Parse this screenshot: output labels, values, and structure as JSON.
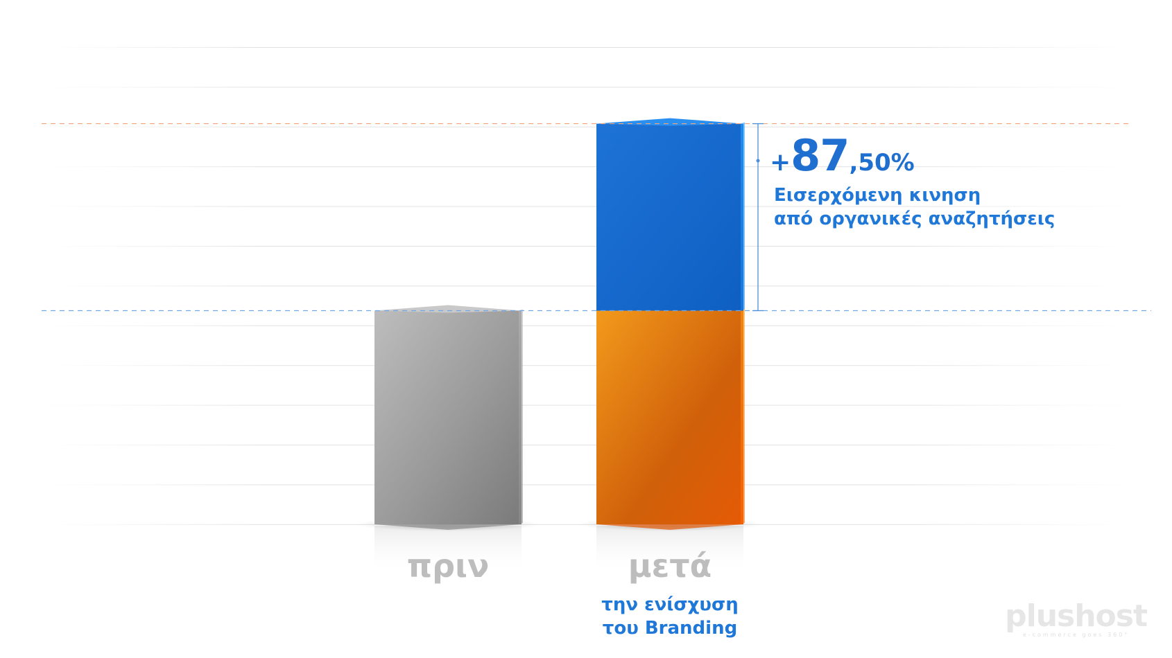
{
  "chart_data": {
    "type": "bar",
    "categories": [
      "πριν",
      "μετά"
    ],
    "series": [
      {
        "values": [
          100,
          100
        ]
      },
      {
        "values": [
          0,
          87.5
        ]
      }
    ],
    "colors": {
      "before": "#a8a8a8",
      "base": "#ff8a00",
      "increase": "#1f86e8"
    },
    "ylim": [
      0,
      200
    ],
    "grid": true,
    "annotation": {
      "plus": "+",
      "integer": "87",
      "decimal": ",50%",
      "line1": "Εισερχόμενη κινηση",
      "line2": "από οργανικές αναζητήσεις"
    },
    "sub_label": {
      "line1": "την ενίσχυση",
      "line2": "του Branding"
    }
  },
  "brand": {
    "logo": "plushost",
    "tagline": "e-commerce goes 360°"
  }
}
